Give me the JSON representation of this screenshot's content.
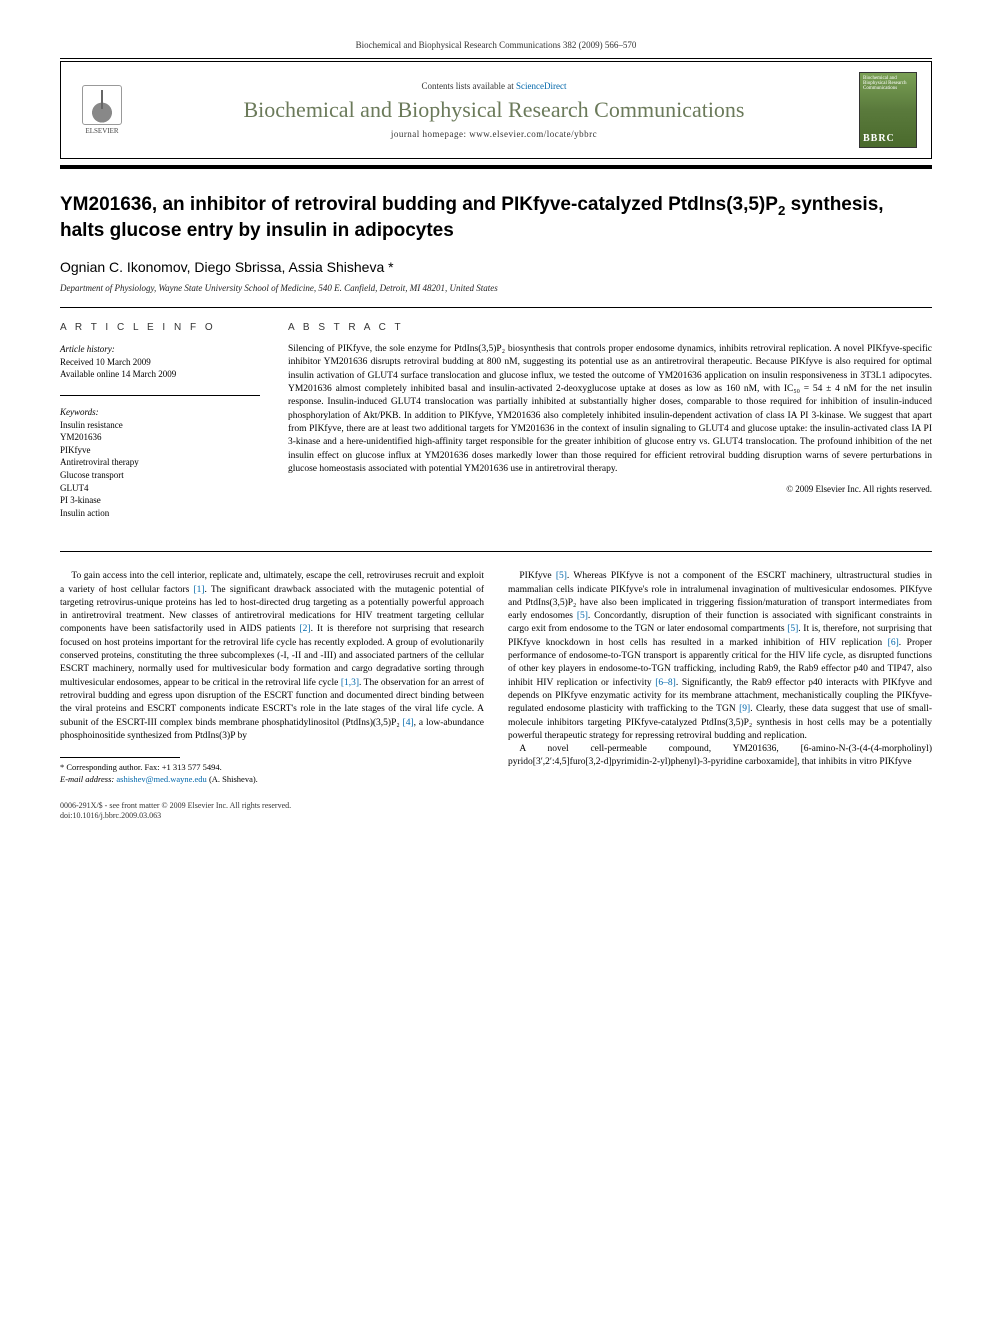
{
  "header": {
    "citation": "Biochemical and Biophysical Research Communications 382 (2009) 566–570"
  },
  "banner": {
    "publisher": "ELSEVIER",
    "contents_prefix": "Contents lists available at ",
    "contents_link": "ScienceDirect",
    "journal_title": "Biochemical and Biophysical Research Communications",
    "homepage_prefix": "journal homepage: ",
    "homepage_url": "www.elsevier.com/locate/ybbrc",
    "cover_text": "Biochemical and Biophysical Research Communications",
    "cover_abbr": "BBRC"
  },
  "article": {
    "title_pre": "YM201636, an inhibitor of retroviral budding and PIKfyve-catalyzed PtdIns(3,5)P",
    "title_sub": "2",
    "title_post": " synthesis, halts glucose entry by insulin in adipocytes",
    "authors": "Ognian C. Ikonomov, Diego Sbrissa, Assia Shisheva *",
    "affiliation": "Department of Physiology, Wayne State University School of Medicine, 540 E. Canfield, Detroit, MI 48201, United States"
  },
  "info": {
    "heading": "A R T I C L E   I N F O",
    "history_label": "Article history:",
    "received": "Received 10 March 2009",
    "available": "Available online 14 March 2009",
    "keywords_label": "Keywords:",
    "keywords": [
      "Insulin resistance",
      "YM201636",
      "PIKfyve",
      "Antiretroviral therapy",
      "Glucose transport",
      "GLUT4",
      "PI 3-kinase",
      "Insulin action"
    ]
  },
  "abstract": {
    "heading": "A B S T R A C T",
    "text": "Silencing of PIKfyve, the sole enzyme for PtdIns(3,5)P₂ biosynthesis that controls proper endosome dynamics, inhibits retroviral replication. A novel PIKfyve-specific inhibitor YM201636 disrupts retroviral budding at 800 nM, suggesting its potential use as an antiretroviral therapeutic. Because PIKfyve is also required for optimal insulin activation of GLUT4 surface translocation and glucose influx, we tested the outcome of YM201636 application on insulin responsiveness in 3T3L1 adipocytes. YM201636 almost completely inhibited basal and insulin-activated 2-deoxyglucose uptake at doses as low as 160 nM, with IC₅₀ = 54 ± 4 nM for the net insulin response. Insulin-induced GLUT4 translocation was partially inhibited at substantially higher doses, comparable to those required for inhibition of insulin-induced phosphorylation of Akt/PKB. In addition to PIKfyve, YM201636 also completely inhibited insulin-dependent activation of class IA PI 3-kinase. We suggest that apart from PIKfyve, there are at least two additional targets for YM201636 in the context of insulin signaling to GLUT4 and glucose uptake: the insulin-activated class IA PI 3-kinase and a here-unidentified high-affinity target responsible for the greater inhibition of glucose entry vs. GLUT4 translocation. The profound inhibition of the net insulin effect on glucose influx at YM201636 doses markedly lower than those required for efficient retroviral budding disruption warns of severe perturbations in glucose homeostasis associated with potential YM201636 use in antiretroviral therapy.",
    "copyright": "© 2009 Elsevier Inc. All rights reserved."
  },
  "body": {
    "col1_p1": "To gain access into the cell interior, replicate and, ultimately, escape the cell, retroviruses recruit and exploit a variety of host cellular factors [1]. The significant drawback associated with the mutagenic potential of targeting retrovirus-unique proteins has led to host-directed drug targeting as a potentially powerful approach in antiretroviral treatment. New classes of antiretroviral medications for HIV treatment targeting cellular components have been satisfactorily used in AIDS patients [2]. It is therefore not surprising that research focused on host proteins important for the retroviral life cycle has recently exploded. A group of evolutionarily conserved proteins, constituting the three subcomplexes (-I, -II and -III) and associated partners of the cellular ESCRT machinery, normally used for multivesicular body formation and cargo degradative sorting through multivesicular endosomes, appear to be critical in the retroviral life cycle [1,3]. The observation for an arrest of retroviral budding and egress upon disruption of the ESCRT function and documented direct binding between the viral proteins and ESCRT components indicate ESCRT's role in the late stages of the viral life cycle. A subunit of the ESCRT-III complex binds membrane phosphatidylinositol (PtdIns)(3,5)P₂ [4], a low-abundance phosphoinositide synthesized from PtdIns(3)P by",
    "col2_p1": "PIKfyve [5]. Whereas PIKfyve is not a component of the ESCRT machinery, ultrastructural studies in mammalian cells indicate PIKfyve's role in intralumenal invagination of multivesicular endosomes. PIKfyve and PtdIns(3,5)P₂ have also been implicated in triggering fission/maturation of transport intermediates from early endosomes [5]. Concordantly, disruption of their function is associated with significant constraints in cargo exit from endosome to the TGN or later endosomal compartments [5]. It is, therefore, not surprising that PIKfyve knockdown in host cells has resulted in a marked inhibition of HIV replication [6]. Proper performance of endosome-to-TGN transport is apparently critical for the HIV life cycle, as disrupted functions of other key players in endosome-to-TGN trafficking, including Rab9, the Rab9 effector p40 and TIP47, also inhibit HIV replication or infectivity [6–8]. Significantly, the Rab9 effector p40 interacts with PIKfyve and depends on PIKfyve enzymatic activity for its membrane attachment, mechanistically coupling the PIKfyve-regulated endosome plasticity with trafficking to the TGN [9]. Clearly, these data suggest that use of small-molecule inhibitors targeting PIKfyve-catalyzed PtdIns(3,5)P₂ synthesis in host cells may be a potentially powerful therapeutic strategy for repressing retroviral budding and replication.",
    "col2_p2": "A novel cell-permeable compound, YM201636, [6-amino-N-(3-(4-(4-morpholinyl) pyrido[3′,2′:4,5]furo[3,2-d]pyrimidin-2-yl)phenyl)-3-pyridine carboxamide], that inhibits in vitro PIKfyve"
  },
  "footnote": {
    "corr_label": "* Corresponding author. Fax: +1 313 577 5494.",
    "email_label": "E-mail address:",
    "email": "ashishev@med.wayne.edu",
    "email_name": "(A. Shisheva)."
  },
  "footer": {
    "line1": "0006-291X/$ - see front matter © 2009 Elsevier Inc. All rights reserved.",
    "line2": "doi:10.1016/j.bbrc.2009.03.063"
  },
  "colors": {
    "journal_title": "#6b7a5a",
    "link": "#0066aa",
    "cover_bg": "#5a7a3c"
  }
}
